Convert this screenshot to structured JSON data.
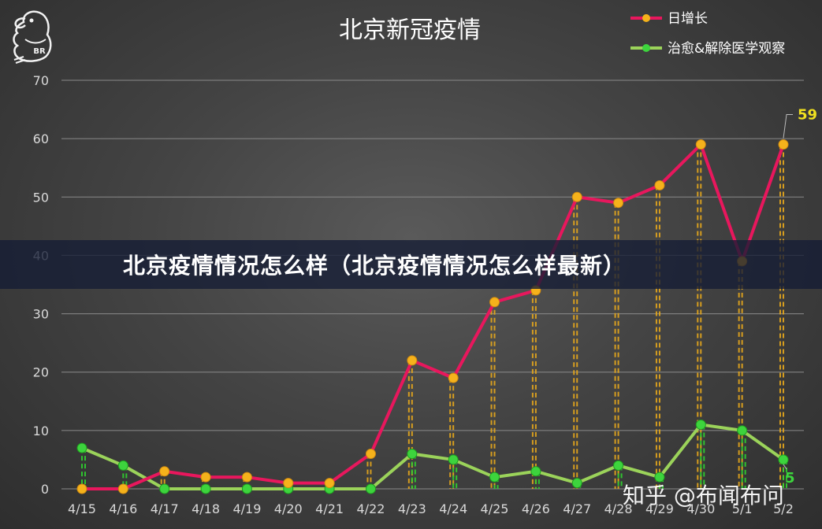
{
  "chart_data": {
    "type": "line",
    "title": "北京新冠疫情",
    "categories": [
      "4/15",
      "4/16",
      "4/17",
      "4/18",
      "4/19",
      "4/20",
      "4/21",
      "4/22",
      "4/23",
      "4/24",
      "4/25",
      "4/26",
      "4/27",
      "4/28",
      "4/29",
      "4/30",
      "5/1",
      "5/2"
    ],
    "series": [
      {
        "name": "日增长",
        "color": "#e8175d",
        "marker": "#f5b21b",
        "values": [
          0,
          0,
          3,
          2,
          2,
          1,
          1,
          6,
          22,
          19,
          32,
          34,
          50,
          49,
          52,
          59,
          39,
          59
        ]
      },
      {
        "name": "治愈&解除医学观察",
        "color": "#9bd35a",
        "marker": "#3dd43d",
        "values": [
          7,
          4,
          0,
          0,
          0,
          0,
          0,
          0,
          6,
          5,
          2,
          3,
          1,
          4,
          2,
          11,
          10,
          5
        ]
      }
    ],
    "ylim": [
      0,
      70
    ],
    "yticks": [
      "0",
      "10",
      "20",
      "30",
      "40",
      "50",
      "60",
      "70"
    ],
    "grid": true,
    "legend_position": "top-right",
    "annotations": [
      {
        "text": "59",
        "series": 0,
        "index": 17,
        "color": "#f0e020"
      },
      {
        "text": "5",
        "series": 1,
        "index": 17,
        "color": "#3dd43d"
      }
    ]
  },
  "banner": {
    "text": "北京疫情情况怎么样（北京疫情情况怎么样最新）"
  },
  "watermark": {
    "text": "知乎 @布闻布问"
  },
  "logo": {
    "text": "BR"
  }
}
